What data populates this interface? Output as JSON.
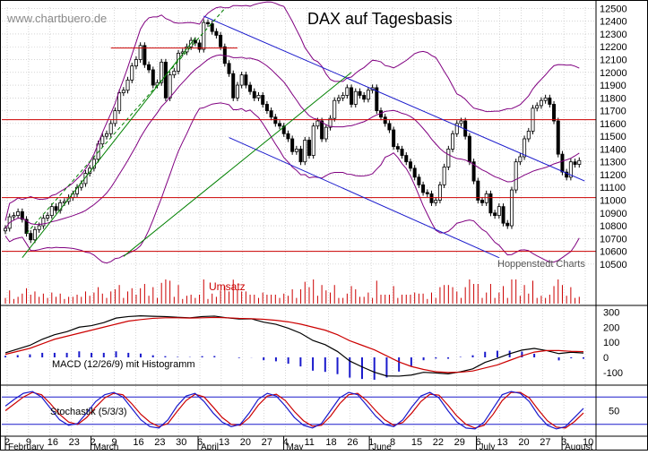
{
  "watermark": "www.chartbuero.de",
  "title": "DAX auf Tagesbasis",
  "source_note": "Hoppenstedt Charts",
  "colors": {
    "up": "#ffffff",
    "down": "#000000",
    "candle_edge": "#000000",
    "bollinger": "#800080",
    "channel": "#1a1acc",
    "trend": "#008000",
    "horizontal": "#cc0000",
    "volume": "#cc0000",
    "macd": "#000000",
    "signal": "#cc0000",
    "histogram": "#1a1acc",
    "stoch_k": "#1a1acc",
    "stoch_d": "#cc0000",
    "grid": "#bbbbbb"
  },
  "chart_data": [
    {
      "type": "candlestick",
      "title": "DAX auf Tagesbasis",
      "y_ticks": [
        10500,
        10600,
        10700,
        10800,
        10900,
        11000,
        11100,
        11200,
        11300,
        11400,
        11500,
        11600,
        11700,
        11800,
        11900,
        12000,
        12100,
        12200,
        12300,
        12400,
        12500
      ],
      "ylim": [
        10450,
        12510
      ],
      "grid": true,
      "x_tick_labels": [
        "2",
        "9",
        "16",
        "23",
        "2",
        "9",
        "16",
        "23",
        "30",
        "6",
        "13",
        "20",
        "27",
        "4",
        "11",
        "18",
        "26",
        "1",
        "8",
        "15",
        "22",
        "29",
        "6",
        "13",
        "20",
        "27",
        "3",
        "10"
      ],
      "month_labels": [
        "February",
        "March",
        "April",
        "May",
        "June",
        "July",
        "August"
      ],
      "ohlc_close": [
        10780,
        10870,
        10880,
        10910,
        10850,
        10740,
        10690,
        10770,
        10800,
        10860,
        10880,
        10950,
        10920,
        10980,
        10990,
        11020,
        11050,
        11100,
        11130,
        11210,
        11250,
        11320,
        11440,
        11500,
        11520,
        11600,
        11700,
        11840,
        11860,
        11940,
        12050,
        12100,
        12210,
        12060,
        12020,
        11900,
        11920,
        12080,
        11800,
        11980,
        12010,
        12150,
        12160,
        12200,
        12250,
        12230,
        12180,
        12390,
        12380,
        12320,
        12290,
        12200,
        12070,
        11990,
        11800,
        11900,
        11980,
        11900,
        11850,
        11800,
        11820,
        11750,
        11700,
        11650,
        11600,
        11580,
        11520,
        11480,
        11380,
        11400,
        11300,
        11470,
        11350,
        11580,
        11620,
        11480,
        11570,
        11640,
        11780,
        11800,
        11820,
        11880,
        11750,
        11850,
        11820,
        11790,
        11860,
        11880,
        11700,
        11650,
        11600,
        11550,
        11420,
        11400,
        11350,
        11300,
        11250,
        11180,
        11120,
        11060,
        11050,
        10980,
        11000,
        11120,
        11260,
        11400,
        11520,
        11600,
        11620,
        11500,
        11300,
        11150,
        11000,
        10980,
        11050,
        10900,
        10880,
        10950,
        10820,
        10800,
        11080,
        11300,
        11340,
        11480,
        11540,
        11720,
        11740,
        11780,
        11800,
        11750,
        11620,
        11360,
        11220,
        11180,
        11300,
        11280,
        11310
      ],
      "horizontal_levels": [
        12190,
        11630,
        11020,
        10600
      ],
      "volume_label": "Umsatz"
    },
    {
      "type": "line",
      "title": "MACD (12/26/9) mit Histogramm",
      "y_ticks": [
        300,
        200,
        100,
        0,
        -100
      ],
      "ylim": [
        -160,
        320
      ],
      "series": [
        {
          "values": [
            30,
            55,
            80,
            120,
            150,
            170,
            200,
            210,
            230,
            260,
            270,
            275,
            272,
            270,
            265,
            262,
            270,
            273,
            262,
            254,
            255,
            233,
            219,
            193,
            160,
            112,
            84,
            39,
            -24,
            -63,
            -98,
            -123,
            -124,
            -117,
            -99,
            -103,
            -109,
            -95,
            -76,
            -33,
            -6,
            24,
            48,
            59,
            45,
            25,
            34,
            29
          ]
        },
        {
          "values": [
            20,
            40,
            60,
            90,
            120,
            140,
            160,
            180,
            200,
            220,
            240,
            250,
            258,
            262,
            262,
            260,
            262,
            264,
            262,
            258,
            256,
            252,
            245,
            235,
            220,
            200,
            180,
            150,
            110,
            80,
            50,
            10,
            -30,
            -60,
            -80,
            -95,
            -100,
            -98,
            -90,
            -70,
            -50,
            -20,
            10,
            35,
            45,
            45,
            40,
            38
          ]
        },
        {
          "values": [
            10,
            15,
            20,
            30,
            30,
            30,
            40,
            30,
            30,
            40,
            30,
            25,
            14,
            8,
            3,
            2,
            8,
            9,
            0,
            -4,
            -1,
            -19,
            -26,
            -42,
            -60,
            -88,
            -96,
            -111,
            -134,
            -143,
            -148,
            -133,
            -94,
            -57,
            -19,
            -8,
            -9,
            3,
            14,
            37,
            44,
            44,
            38,
            24,
            0,
            -20,
            -6,
            -9
          ]
        }
      ]
    },
    {
      "type": "line",
      "title": "Stochastik (5/3/3)",
      "y_ticks": [
        50
      ],
      "ylim": [
        0,
        100
      ],
      "reference_levels": [
        80,
        20
      ],
      "series": [
        {
          "values": [
            60,
            75,
            88,
            92,
            80,
            55,
            30,
            18,
            22,
            45,
            70,
            85,
            90,
            80,
            55,
            30,
            15,
            12,
            30,
            60,
            82,
            88,
            70,
            45,
            25,
            15,
            20,
            45,
            75,
            88,
            82,
            60,
            35,
            18,
            12,
            22,
            50,
            78,
            90,
            85,
            62,
            38,
            20,
            15,
            30,
            58,
            82,
            90,
            78,
            50,
            25,
            12,
            10,
            25,
            55,
            85,
            92,
            88,
            70,
            40,
            18,
            10,
            15,
            35,
            55
          ]
        },
        {
          "values": [
            50,
            65,
            80,
            90,
            85,
            65,
            42,
            25,
            20,
            35,
            58,
            78,
            88,
            85,
            65,
            42,
            25,
            15,
            22,
            48,
            72,
            86,
            80,
            58,
            35,
            20,
            18,
            35,
            62,
            82,
            86,
            72,
            48,
            28,
            16,
            18,
            38,
            65,
            85,
            88,
            72,
            50,
            30,
            18,
            24,
            45,
            70,
            86,
            84,
            62,
            38,
            20,
            12,
            18,
            42,
            72,
            90,
            90,
            78,
            52,
            28,
            14,
            12,
            26,
            45
          ]
        }
      ]
    }
  ]
}
